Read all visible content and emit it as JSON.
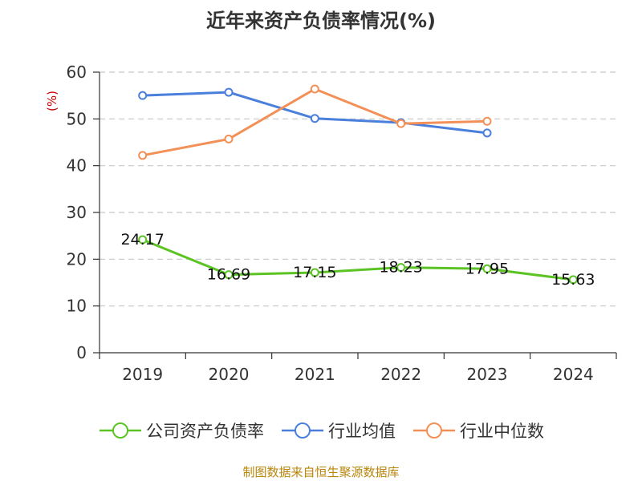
{
  "source_note": "制图数据来自恒生聚源数据库",
  "colors": {
    "company": "#5bc424",
    "industry_avg": "#4a7fdb",
    "industry_median": "#f39057",
    "source": "#b8860b",
    "unit": "#cc0000"
  },
  "chart_data": {
    "type": "line",
    "title": "近年来资产负债率情况(%)",
    "ylabel": "(%)",
    "categories": [
      "2019",
      "2020",
      "2021",
      "2022",
      "2023",
      "2024"
    ],
    "ylim": [
      0,
      60
    ],
    "yticks": [
      0,
      10,
      20,
      30,
      40,
      50,
      60
    ],
    "grid": true,
    "legend_position": "bottom",
    "series": [
      {
        "name": "公司资产负债率",
        "color": "#5bc424",
        "values": [
          24.17,
          16.69,
          17.15,
          18.23,
          17.95,
          15.63
        ],
        "labels": [
          "24.17",
          "16.69",
          "17.15",
          "18.23",
          "17.95",
          "15.63"
        ]
      },
      {
        "name": "行业均值",
        "color": "#4a7fdb",
        "values": [
          55.0,
          55.7,
          50.1,
          49.2,
          47.0,
          null
        ]
      },
      {
        "name": "行业中位数",
        "color": "#f39057",
        "values": [
          42.2,
          45.7,
          56.4,
          49.0,
          49.5,
          null
        ]
      }
    ]
  }
}
